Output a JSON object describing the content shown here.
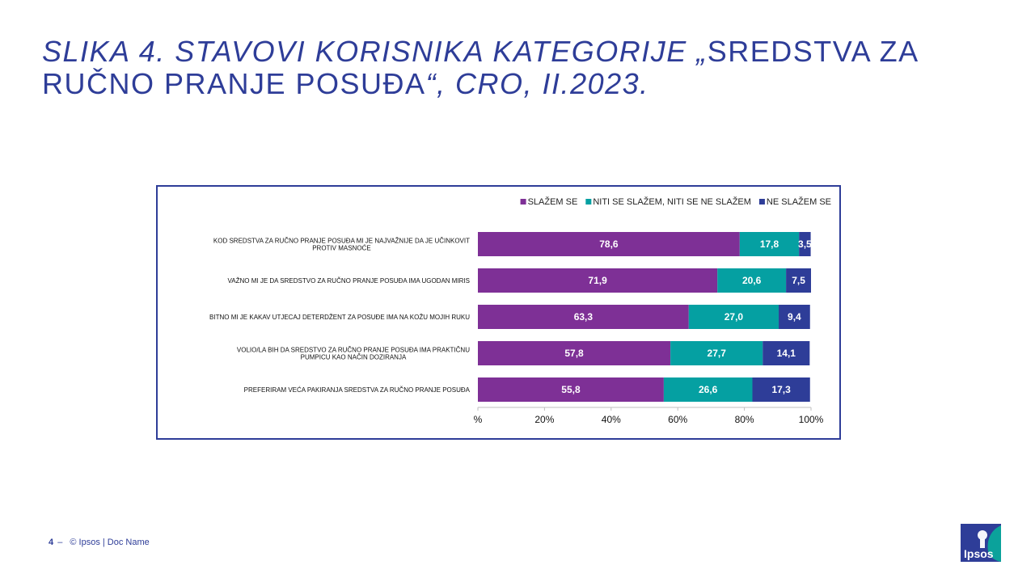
{
  "title": {
    "part1": "SLIKA 4. STAVOVI KORISNIKA KATEGORIJE „",
    "part2": "SREDSTVA ZA RUČNO PRANJE POSUĐA",
    "part3": "“, CRO, II.2023."
  },
  "footer": {
    "page_number": "4",
    "dash": "–",
    "copyright": "© Ipsos | Doc Name"
  },
  "logo": {
    "text": "Ipsos"
  },
  "colors": {
    "brand": "#2E3D98",
    "slazem": "#7E3096",
    "niti": "#05A0A2",
    "ne": "#2E3D98",
    "logo_teal": "#0BA29B"
  },
  "chart_data": {
    "type": "bar",
    "orientation": "horizontal",
    "stacked": true,
    "categories": [
      [
        "KOD SREDSTVA  ZA RUČNO PRANJE POSUĐA MI JE NAJVAŽNIJE  DA JE UČINKOVIT",
        "PROTIV MASNOĆE"
      ],
      [
        "VAŽNO MI JE DA SREDSTVO ZA RUČNO PRANJE  POSUĐA IMA UGODAN MIRIS"
      ],
      [
        "BITNO MI JE KAKAV  UTJECAJ  DETERDŽENT ZA POSUĐE IMA  NA KOŽU MOJIH RUKU"
      ],
      [
        "VOLIO/LA BIH DA SREDSTVO ZA RUČNO PRANJE  POSUĐA IMA PRAKTIČNU",
        "PUMPICU KAO NAČIN DOZIRANJA"
      ],
      [
        "PREFERIRAM VEĆA PAKIRANJA  SREDSTVA ZA RUČNO PRANJE  POSUĐA"
      ]
    ],
    "series": [
      {
        "name": "SLAŽEM SE",
        "color": "#7E3096",
        "values": [
          78.6,
          71.9,
          63.3,
          57.8,
          55.8
        ],
        "labels": [
          "78,6",
          "71,9",
          "63,3",
          "57,8",
          "55,8"
        ]
      },
      {
        "name": "NITI SE SLAŽEM, NITI SE NE SLAŽEM",
        "color": "#05A0A2",
        "values": [
          17.8,
          20.6,
          27.0,
          27.7,
          26.6
        ],
        "labels": [
          "17,8",
          "20,6",
          "27,0",
          "27,7",
          "26,6"
        ]
      },
      {
        "name": "NE SLAŽEM SE",
        "color": "#2E3D98",
        "values": [
          3.5,
          7.5,
          9.4,
          14.1,
          17.3
        ],
        "labels": [
          "3,5",
          "7,5",
          "9,4",
          "14,1",
          "17,3"
        ]
      }
    ],
    "xlim": [
      0,
      100
    ],
    "xticks": [
      "%",
      "20%",
      "40%",
      "60%",
      "80%",
      "100%"
    ],
    "grid": false,
    "legend": "top-right"
  }
}
